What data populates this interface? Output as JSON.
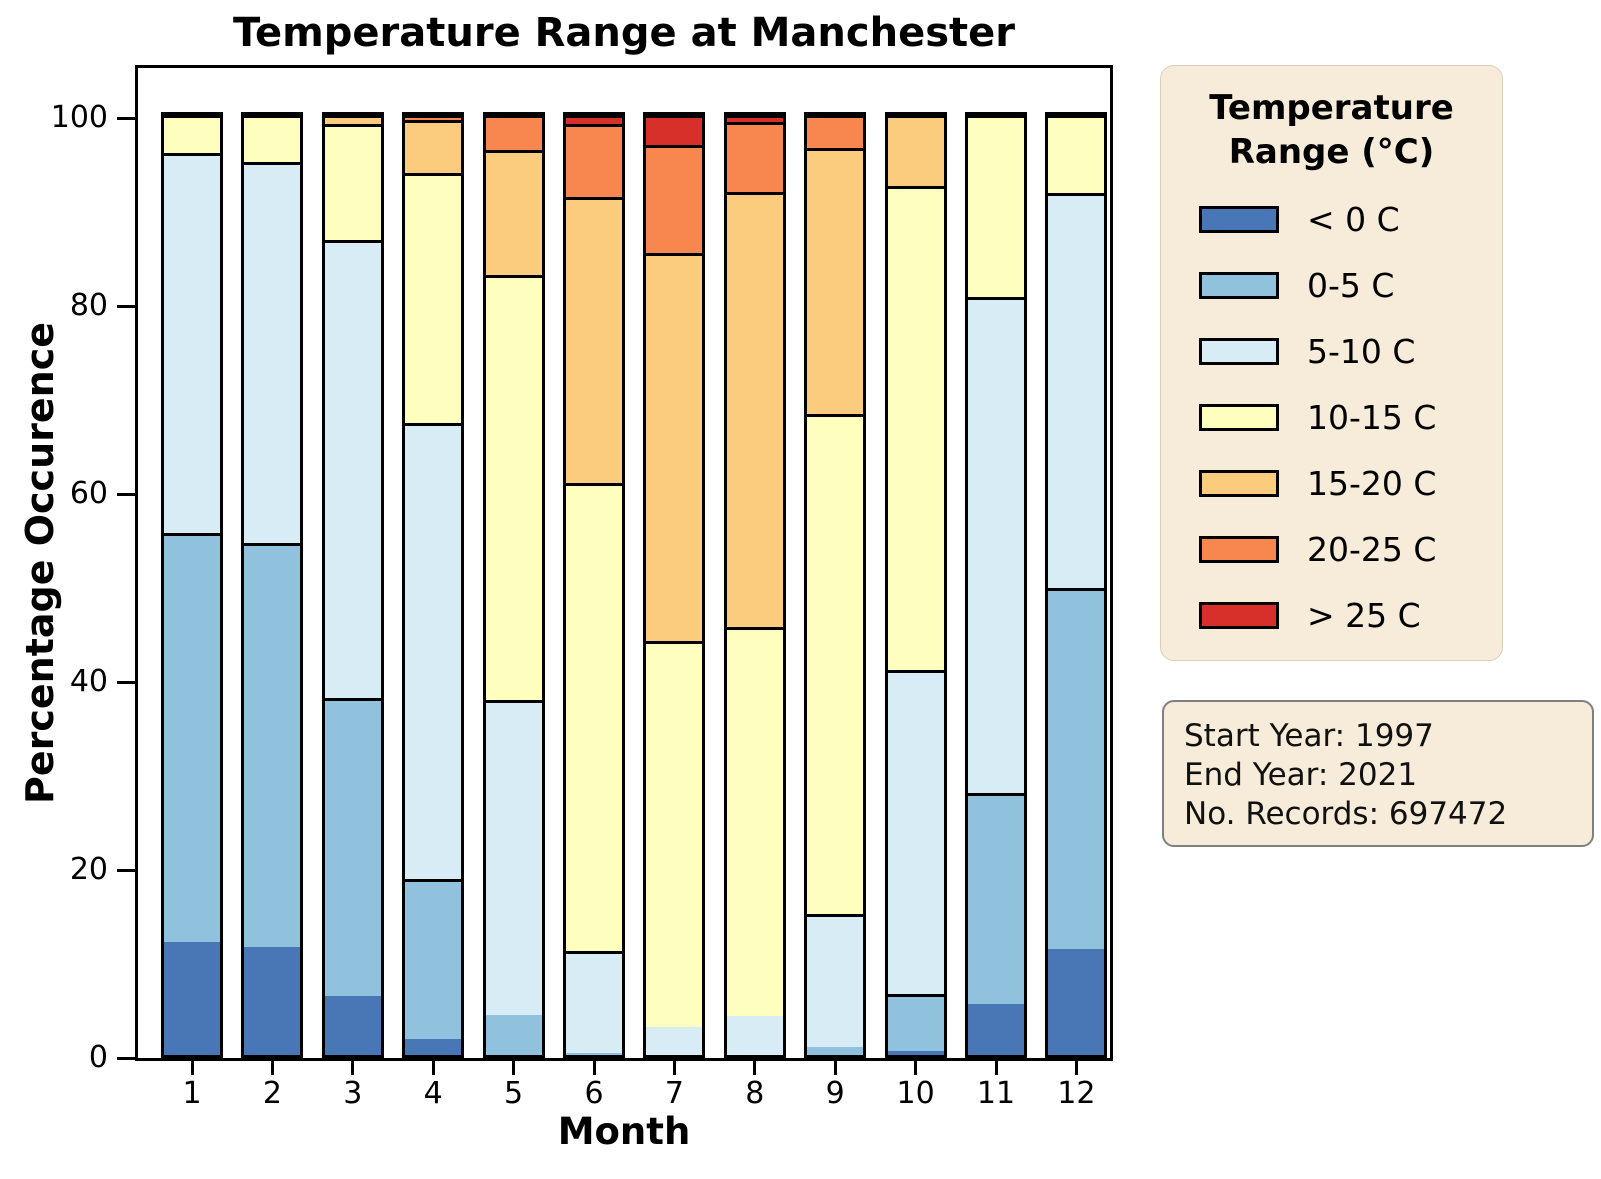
{
  "title": "Temperature Range at Manchester",
  "x_axis": {
    "label": "Month"
  },
  "y_axis": {
    "label": "Percentage Occurence",
    "ticks": [
      0,
      20,
      40,
      60,
      80,
      100
    ]
  },
  "legend": {
    "title": "Temperature\nRange (°C)"
  },
  "info_box": {
    "lines": [
      "Start Year: 1997",
      "End Year: 2021",
      "No. Records: 697472"
    ]
  },
  "colors": {
    "panel_background": "#F6ECD9",
    "bar_edge": "#000000",
    "info_border": "#7f7f7f"
  },
  "chart_data": {
    "type": "bar",
    "stacked": true,
    "title": "Temperature Range at Manchester",
    "xlabel": "Month",
    "ylabel": "Percentage Occurence",
    "ylim": [
      0,
      105
    ],
    "grid": false,
    "legend_position": "right",
    "categories": [
      "1",
      "2",
      "3",
      "4",
      "5",
      "6",
      "7",
      "8",
      "9",
      "10",
      "11",
      "12"
    ],
    "series": [
      {
        "name": "< 0 C",
        "color": "#4977B5",
        "values": [
          12.0,
          11.5,
          6.3,
          1.7,
          0,
          0,
          0,
          0,
          0,
          0.4,
          5.4,
          11.3
        ]
      },
      {
        "name": "0-5 C",
        "color": "#90C2DE",
        "values": [
          43.5,
          43.0,
          31.7,
          17.0,
          4.3,
          0.2,
          0,
          0,
          0.9,
          6.1,
          22.5,
          38.4
        ]
      },
      {
        "name": "5-10 C",
        "color": "#D8ECF5",
        "values": [
          40.5,
          40.5,
          48.7,
          48.5,
          33.5,
          10.9,
          3.0,
          4.1,
          14.1,
          34.5,
          52.7,
          42.0
        ]
      },
      {
        "name": "10-15 C",
        "color": "#FEFEBE",
        "values": [
          4.0,
          5.0,
          12.3,
          26.6,
          45.2,
          49.8,
          41.0,
          41.4,
          53.2,
          51.4,
          19.4,
          8.3
        ]
      },
      {
        "name": "15-20 C",
        "color": "#FBCB7E",
        "values": [
          0,
          0,
          1.0,
          5.7,
          13.3,
          30.4,
          41.3,
          46.3,
          28.3,
          7.6,
          0,
          0
        ]
      },
      {
        "name": "20-25 C",
        "color": "#F8864F",
        "values": [
          0,
          0,
          0,
          0.5,
          3.7,
          7.8,
          11.5,
          7.5,
          3.5,
          0,
          0,
          0
        ]
      },
      {
        "name": "> 25 C",
        "color": "#D7302A",
        "values": [
          0,
          0,
          0,
          0,
          0,
          0.9,
          3.2,
          0.7,
          0,
          0,
          0,
          0
        ]
      }
    ]
  }
}
